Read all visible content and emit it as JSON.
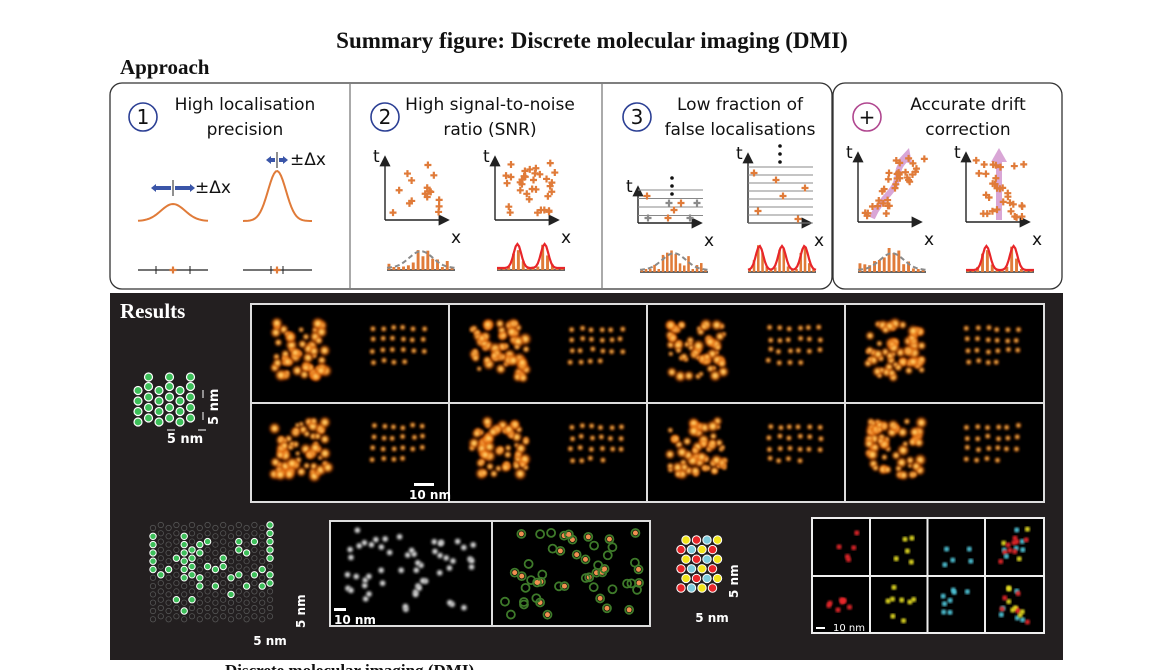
{
  "title": "Summary figure: Discrete molecular imaging (DMI)",
  "approach": {
    "heading": "Approach",
    "panels": [
      {
        "badge": "1",
        "line1": "High localisation",
        "line2": "precision",
        "delta_label": "±Δx"
      },
      {
        "badge": "2",
        "line1": "High signal-to-noise",
        "line2": "ratio (SNR)"
      },
      {
        "badge": "3",
        "line1": "Low fraction of",
        "line2": "false localisations"
      },
      {
        "badge": "+",
        "line1": "Accurate drift",
        "line2": "correction"
      }
    ],
    "axis_t": "t",
    "axis_x": "x",
    "colors": {
      "badge": "#2b3f94",
      "drift_badge": "#b0468f",
      "marker": "#e07b39",
      "fit": "#e8262a",
      "false": "#8a8a8a",
      "drift_arrow": "#d9a6d6"
    }
  },
  "results": {
    "heading": "Results",
    "scale_5nm": "5 nm",
    "scale_10nm": "10 nm",
    "background": "#231f20",
    "lattice_colors": [
      "#f2e51b",
      "#e8262a",
      "#7ecbdc"
    ],
    "dot_green": "#3dbf5a"
  },
  "caption": "Discrete molecular imaging (DMI)."
}
